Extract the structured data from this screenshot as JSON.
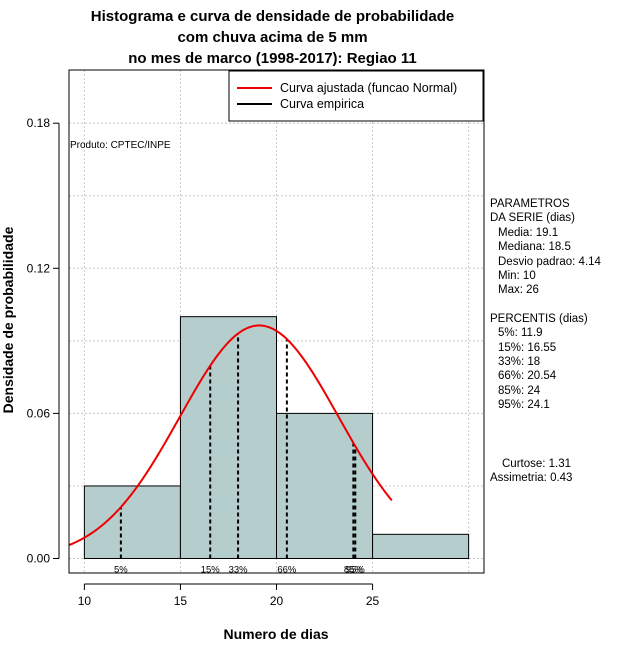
{
  "title_lines": [
    "Histograma e curva de densidade de probabilidade",
    "com chuva acima de 5 mm",
    "no mes de marco (1998-2017): Regiao 11"
  ],
  "product_note": "Produto: CPTEC/INPE",
  "parametros": {
    "header_1": "PARAMETROS",
    "header_2": "DA SERIE (dias)",
    "lines": [
      "Media: 19.1",
      "Mediana: 18.5",
      "Desvio padrao: 4.14",
      "Min: 10",
      "Max: 26"
    ]
  },
  "percentis": {
    "header": "PERCENTIS (dias)",
    "lines": [
      "5%: 11.9",
      "15%: 16.55",
      "33%: 18",
      "66%: 20.54",
      "85%: 24",
      "95%: 24.1"
    ]
  },
  "curtose": "Curtose: 1.31",
  "assimetria": "Assimetria: 0.43",
  "chart_data": {
    "type": "bar",
    "xlabel": "Numero de dias",
    "ylabel": "Densidade de probabilidade",
    "xlim": [
      9.2,
      30.8
    ],
    "ylim": [
      -0.006,
      0.202
    ],
    "x_ticks": [
      10,
      15,
      20,
      25
    ],
    "y_ticks": [
      0.0,
      0.06,
      0.12,
      0.18
    ],
    "y_tick_labels": [
      "0.00",
      "0.06",
      "0.12",
      "0.18"
    ],
    "grid": true,
    "legend_position": "top-right",
    "bins": [
      {
        "from": 10,
        "to": 15,
        "density": 0.03
      },
      {
        "from": 15,
        "to": 20,
        "density": 0.1
      },
      {
        "from": 20,
        "to": 25,
        "density": 0.06
      },
      {
        "from": 25,
        "to": 30,
        "density": 0.01
      }
    ],
    "bar_color": "#b6cdcd",
    "series": [
      {
        "name": "Curva ajustada (funcao Normal)",
        "color": "#ee0000",
        "mean": 19.1,
        "sd": 4.14,
        "x_range": [
          9.2,
          26
        ]
      },
      {
        "name": "Curva empirica",
        "color": "#000000"
      }
    ],
    "percentiles": [
      {
        "label": "5%",
        "value": 11.9
      },
      {
        "label": "15%",
        "value": 16.55
      },
      {
        "label": "33%",
        "value": 18
      },
      {
        "label": "66%",
        "value": 20.54
      },
      {
        "label": "85%",
        "value": 24
      },
      {
        "label": "95%",
        "value": 24.1
      }
    ]
  }
}
